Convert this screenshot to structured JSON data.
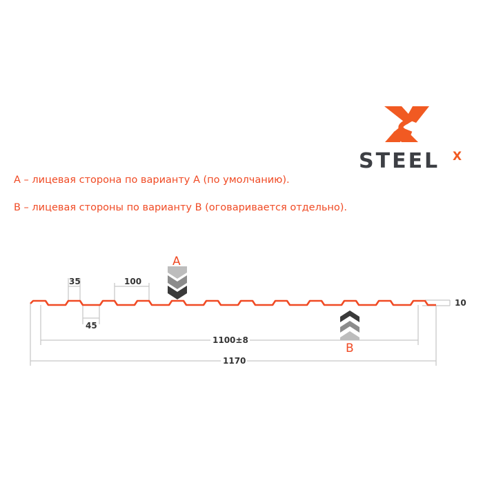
{
  "logo": {
    "text": "STEEL",
    "superscript": "X",
    "brand_color": "#f15a22",
    "text_color": "#3d3f44"
  },
  "notes": [
    "А – лицевая сторона по варианту А (по умолчанию).",
    "В – лицевая стороны по варианту В (оговаривается отдельно)."
  ],
  "diagram": {
    "profile_color": "#f04a24",
    "dimension_color": "#c8c8c8",
    "dimensions": {
      "top_width": "35",
      "bottom_width": "45",
      "pitch": "100",
      "height": "10",
      "useful_width": "1100±8",
      "total_width": "1170"
    },
    "side_a": {
      "label": "A",
      "arrow_direction": "down"
    },
    "side_b": {
      "label": "B",
      "arrow_direction": "up"
    }
  }
}
